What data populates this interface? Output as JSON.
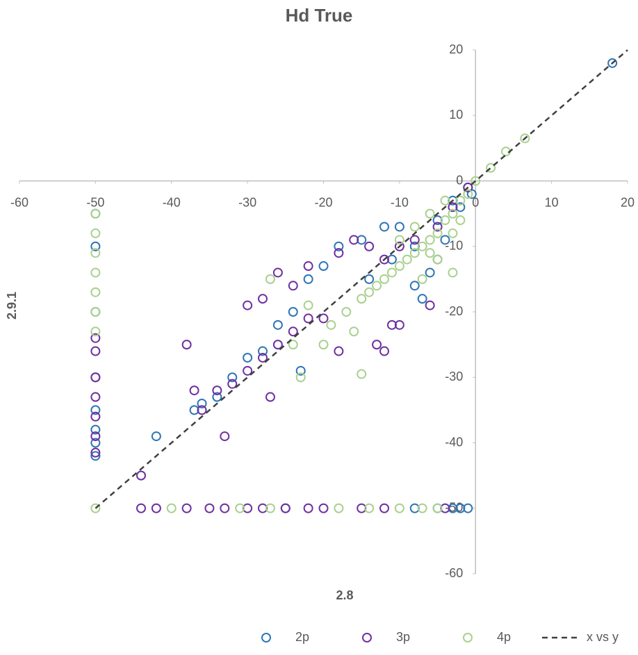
{
  "chart_data": {
    "type": "scatter",
    "title": "Hd True",
    "x_label": "2.8",
    "y_label": "2.9.1",
    "xlim": [
      -60,
      20
    ],
    "ylim": [
      -60,
      20
    ],
    "xticks": [
      -60,
      -50,
      -40,
      -30,
      -20,
      -10,
      0,
      10,
      20
    ],
    "yticks": [
      20,
      10,
      0,
      -10,
      -20,
      -30,
      -40,
      -50,
      -60
    ],
    "legend": "bottom",
    "series": [
      {
        "name": "2p",
        "color": "#2e75b6",
        "x": [
          18,
          -0.5,
          -3,
          -5,
          -8,
          -10,
          -12,
          -15,
          -18,
          -20,
          -22,
          -24,
          -26,
          -28,
          -30,
          -32,
          -34,
          -36,
          -37,
          -42,
          -23,
          -8,
          -7,
          -6,
          -5,
          -4,
          -2,
          -1,
          -14,
          -11,
          -50,
          -50,
          -50,
          -50,
          -50,
          -50,
          -50,
          -50,
          -3,
          -5,
          -8,
          -2,
          -25,
          -1
        ],
        "y": [
          18,
          -2,
          -3,
          -6,
          -10,
          -7,
          -7,
          -9,
          -10,
          -13,
          -15,
          -20,
          -22,
          -26,
          -27,
          -30,
          -33,
          -34,
          -35,
          -39,
          -29,
          -16,
          -18,
          -14,
          -12,
          -9,
          -4,
          -1,
          -15,
          -12,
          -5,
          -10,
          -20,
          -30,
          -35,
          -38,
          -40,
          -42,
          -50,
          -50,
          -50,
          -50,
          -50,
          -50
        ]
      },
      {
        "name": "3p",
        "color": "#7030a0",
        "x": [
          -1,
          -3,
          -5,
          -8,
          -10,
          -12,
          -14,
          -16,
          -18,
          -22,
          -24,
          -26,
          -28,
          -30,
          -38,
          -37,
          -33,
          -44,
          -36,
          -34,
          -32,
          -30,
          -28,
          -26,
          -24,
          -22,
          -20,
          -18,
          -13,
          -12,
          -11,
          -10,
          -27,
          -6,
          -50,
          -50,
          -50,
          -50,
          -50,
          -50,
          -50,
          -44,
          -42,
          -38,
          -35,
          -33,
          -30,
          -28,
          -25,
          -22,
          -20,
          -15,
          -12,
          -4
        ],
        "y": [
          -1,
          -4,
          -7,
          -9,
          -10,
          -12,
          -10,
          -9,
          -11,
          -13,
          -16,
          -14,
          -18,
          -19,
          -25,
          -32,
          -39,
          -45,
          -35,
          -32,
          -31,
          -29,
          -27,
          -25,
          -23,
          -21,
          -21,
          -26,
          -25,
          -26,
          -22,
          -22,
          -33,
          -19,
          -24,
          -26,
          -30,
          -33,
          -36,
          -39,
          -41.5,
          -50,
          -50,
          -50,
          -50,
          -50,
          -50,
          -50,
          -50,
          -50,
          -50,
          -50,
          -50,
          -50
        ]
      },
      {
        "name": "4p",
        "color": "#a9d18e",
        "x": [
          6.5,
          4,
          2,
          0,
          -1,
          -2,
          -3,
          -4,
          -5,
          -6,
          -7,
          -8,
          -9,
          -10,
          -11,
          -12,
          -13,
          -14,
          -15,
          -6,
          -8,
          -10,
          -4,
          -3,
          -5,
          -7,
          -17,
          -19,
          -22,
          -16,
          -15,
          -23,
          -27,
          -20,
          -24,
          -6,
          -2,
          -3,
          -50,
          -50,
          -50,
          -50,
          -50,
          -50,
          -50,
          -50,
          -40,
          -31,
          -27,
          -18,
          -14,
          -10,
          -7,
          -5
        ],
        "y": [
          6.5,
          4.5,
          2,
          0,
          -2,
          -3,
          -5,
          -6,
          -8,
          -9,
          -10,
          -11,
          -12,
          -13,
          -14,
          -15,
          -16,
          -17,
          -18,
          -5,
          -7,
          -9,
          -3,
          -8,
          -12,
          -15,
          -20,
          -22,
          -19,
          -23,
          -29.5,
          -30,
          -15,
          -25,
          -25,
          -11,
          -6,
          -14,
          -5,
          -8,
          -11,
          -14,
          -17,
          -20,
          -23,
          -50,
          -50,
          -50,
          -50,
          -50,
          -50,
          -50,
          -50,
          -50
        ]
      },
      {
        "name": "x vs y",
        "type": "line",
        "color": "#404040",
        "dash": "dashed",
        "x": [
          -50,
          20
        ],
        "y": [
          -50,
          20
        ]
      }
    ]
  }
}
